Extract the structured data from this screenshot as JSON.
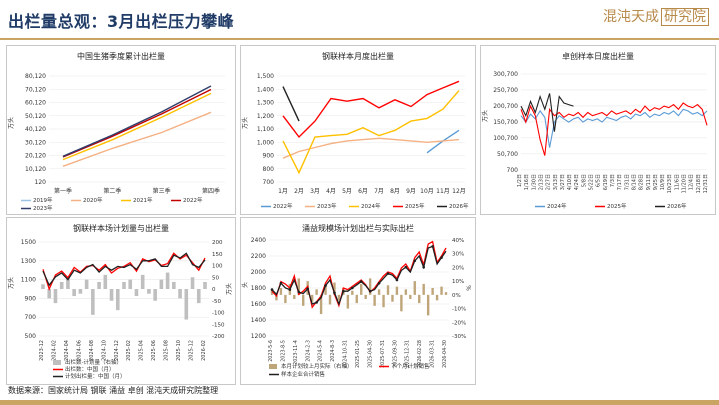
{
  "header": {
    "title": "出栏量总观：3月出栏压力攀峰",
    "brand_left": "混沌天成",
    "brand_right": "研究院"
  },
  "footer": {
    "source": "数据来源：国家统计局  钢联  涌益  卓创  混沌天成研究院整理"
  },
  "colors": {
    "accent": "#c9a463",
    "title": "#1f3b66"
  },
  "chart_data": [
    {
      "id": "c1",
      "type": "line",
      "title": "中国生猪季度累计出栏量",
      "ylabel": "万头",
      "categories": [
        "第一季",
        "第二季",
        "第三季",
        "第四季"
      ],
      "ylim": [
        120,
        80120
      ],
      "yticks": [
        "120",
        "10,120",
        "20,120",
        "30,120",
        "40,120",
        "50,120",
        "60,120",
        "70,120",
        "80,120"
      ],
      "series": [
        {
          "name": "2019年",
          "color": "#9dc3e6",
          "values": [
            null,
            null,
            null,
            null
          ]
        },
        {
          "name": "2020年",
          "color": "#f4b183",
          "values": [
            12000,
            25500,
            37500,
            52700
          ]
        },
        {
          "name": "2021年",
          "color": "#ffc000",
          "values": [
            17000,
            32000,
            49000,
            67000
          ]
        },
        {
          "name": "2022年",
          "color": "#c00000",
          "values": [
            19000,
            34500,
            51500,
            69900
          ]
        },
        {
          "name": "2023年",
          "color": "#2f3d6b",
          "values": [
            19500,
            35500,
            53000,
            72600
          ]
        }
      ]
    },
    {
      "id": "c2",
      "type": "line",
      "title": "钢联样本月度出栏量",
      "ylabel": "万头",
      "categories": [
        "1月",
        "2月",
        "3月",
        "4月",
        "5月",
        "6月",
        "7月",
        "8月",
        "9月",
        "10月",
        "11月",
        "12月"
      ],
      "ylim": [
        700,
        1500
      ],
      "yticks": [
        "700",
        "800",
        "900",
        "1,000",
        "1,100",
        "1,200",
        "1,300",
        "1,400",
        "1,500"
      ],
      "series": [
        {
          "name": "2022年",
          "color": "#5b9bd5",
          "values": [
            null,
            null,
            null,
            null,
            null,
            null,
            null,
            null,
            null,
            920,
            1010,
            1090
          ]
        },
        {
          "name": "2023年",
          "color": "#f4b183",
          "values": [
            880,
            930,
            960,
            990,
            1010,
            1020,
            1030,
            1020,
            1010,
            1000,
            1010,
            1020
          ]
        },
        {
          "name": "2024年",
          "color": "#ffc000",
          "values": [
            1010,
            770,
            1040,
            1050,
            1060,
            1110,
            1050,
            1090,
            1160,
            1180,
            1250,
            1390
          ]
        },
        {
          "name": "2025年",
          "color": "#ff0000",
          "values": [
            1200,
            1040,
            1160,
            1330,
            1310,
            1330,
            1260,
            1320,
            1270,
            1360,
            1410,
            1460
          ]
        },
        {
          "name": "2026年",
          "color": "#222222",
          "values": [
            1420,
            1160,
            null,
            null,
            null,
            null,
            null,
            null,
            null,
            null,
            null,
            null
          ]
        }
      ]
    },
    {
      "id": "c3",
      "type": "line",
      "title": "卓创样本日度出栏量",
      "ylabel": "万头",
      "xticks": [
        "1/2日",
        "1/16日",
        "1/30日",
        "2/13日",
        "2/27日",
        "3/13日",
        "3/27日",
        "4/10日",
        "4/24日",
        "5/8日",
        "5/22日",
        "6/5日",
        "6/19日",
        "7/3日",
        "7/17日",
        "7/31日",
        "8/14日",
        "8/28日",
        "9/11日",
        "9/25日",
        "10/9日",
        "10/23日",
        "11/6日",
        "11/20日",
        "12/4日",
        "12/18日",
        "12/31日"
      ],
      "ylim": [
        0,
        300700
      ],
      "yticks": [
        "700",
        "50,700",
        "100,700",
        "150,700",
        "200,700",
        "250,700",
        "300,700"
      ],
      "series": [
        {
          "name": "2024年",
          "color": "#5b9bd5",
          "values": [
            170000,
            150000,
            175000,
            160000,
            185000,
            165000,
            70000,
            150000,
            170000,
            160000,
            150000,
            160000,
            165000,
            150000,
            160000,
            155000,
            160000,
            150000,
            165000,
            160000,
            155000,
            165000,
            170000,
            160000,
            175000,
            170000,
            180000,
            165000,
            175000,
            170000,
            180000,
            175000,
            185000,
            170000,
            190000,
            185000,
            175000,
            180000,
            170000,
            185000
          ]
        },
        {
          "name": "2025年",
          "color": "#ff0000",
          "values": [
            190000,
            150000,
            200000,
            170000,
            95000,
            45000,
            190000,
            170000,
            180000,
            165000,
            175000,
            170000,
            180000,
            165000,
            180000,
            170000,
            175000,
            180000,
            170000,
            185000,
            175000,
            180000,
            185000,
            175000,
            190000,
            180000,
            200000,
            185000,
            195000,
            190000,
            200000,
            195000,
            205000,
            190000,
            210000,
            200000,
            195000,
            205000,
            190000,
            140000
          ]
        },
        {
          "name": "2026年",
          "color": "#222222",
          "values": [
            200000,
            170000,
            215000,
            180000,
            230000,
            190000,
            240000,
            120000,
            230000,
            210000,
            205000,
            200000,
            null,
            null,
            null,
            null,
            null,
            null,
            null,
            null,
            null,
            null,
            null,
            null,
            null,
            null,
            null,
            null,
            null,
            null,
            null,
            null,
            null,
            null,
            null,
            null,
            null,
            null,
            null,
            null
          ]
        }
      ]
    },
    {
      "id": "c4",
      "type": "bar",
      "title": "钢联样本场计划量与出栏量",
      "ylabel": "万头",
      "y2label": "万头",
      "xticks": [
        "2023-12",
        "2024-02",
        "2024-04",
        "2024-06",
        "2024-08",
        "2024-10",
        "2024-12",
        "2025-02",
        "2025-04",
        "2025-06",
        "2025-08",
        "2025-10",
        "2025-12",
        "2026-02"
      ],
      "ylim": [
        500,
        1500
      ],
      "yticks": [
        "500",
        "700",
        "900",
        "1100",
        "1300",
        "1500"
      ],
      "y2lim": [
        -200,
        200
      ],
      "y2ticks": [
        "-200",
        "-150",
        "-100",
        "-50",
        "0",
        "50",
        "100",
        "150",
        "200"
      ],
      "series": [
        {
          "name": "出栏数-计划量（右轴）",
          "color": "#bfbfbf",
          "type": "bar",
          "values": [
            20,
            -40,
            -60,
            30,
            50,
            -30,
            -20,
            40,
            -110,
            30,
            60,
            -50,
            -90,
            30,
            40,
            -30,
            60,
            -20,
            -50,
            40,
            70,
            30,
            -40,
            -130,
            50,
            -60,
            30
          ]
        },
        {
          "name": "出栏数：中国（月）",
          "color": "#ff0000",
          "type": "line",
          "values": [
            1210,
            1000,
            1150,
            1190,
            1120,
            1230,
            1180,
            1240,
            1250,
            1200,
            1260,
            1170,
            1220,
            1240,
            1280,
            1190,
            1320,
            1290,
            1310,
            1250,
            1270,
            1380,
            1320,
            1360,
            1280,
            1200,
            1330
          ]
        },
        {
          "name": "计划出栏量：中国（月）",
          "color": "#222222",
          "type": "line",
          "values": [
            1190,
            1040,
            1130,
            1170,
            1100,
            1200,
            1170,
            1230,
            1260,
            1180,
            1240,
            1200,
            1240,
            1230,
            1260,
            1210,
            1300,
            1300,
            1320,
            1240,
            1240,
            1360,
            1330,
            1380,
            1260,
            1230,
            1310
          ]
        }
      ]
    },
    {
      "id": "c5",
      "type": "bar",
      "title": "涌益规模场计划出栏与实际出栏",
      "ylabel": "头",
      "y2label": "%",
      "xticks": [
        "2023-5-6",
        "2023-8-5",
        "2023-11-4",
        "2024-2-3",
        "2024-5-4",
        "2024-8-3",
        "2024-10-31",
        "2025-01-25",
        "2025-04-30",
        "2025-07-31",
        "2025-09-30",
        "2025-12-31",
        "2026-02-28",
        "2026-03-31",
        "2026-04-30"
      ],
      "ylim": [
        1200,
        2400
      ],
      "yticks": [
        "1200",
        "1400",
        "1600",
        "1800",
        "2000",
        "2200",
        "2400"
      ],
      "y2lim": [
        -30,
        40
      ],
      "y2ticks": [
        "-30%",
        "-20%",
        "-10%",
        "0%",
        "10%",
        "20%",
        "30%",
        "40%"
      ],
      "series": [
        {
          "name": "本月计划较上月实际（右轴）",
          "color": "#bfa57a",
          "type": "bar",
          "values": [
            3,
            -4,
            5,
            -6,
            8,
            -3,
            12,
            -8,
            10,
            -5,
            4,
            -14,
            6,
            -7,
            9,
            -4,
            5,
            -10,
            3,
            -6,
            8,
            -3,
            12,
            -8,
            4,
            -9,
            7,
            -5,
            6,
            -12,
            4,
            -3,
            10,
            -6,
            8,
            -15,
            5,
            -4,
            6,
            2
          ]
        },
        {
          "name": "下个月计划销售",
          "color": "#ff0000",
          "type": "line",
          "values": [
            1760,
            1700,
            1880,
            1850,
            1800,
            1950,
            1720,
            1760,
            1820,
            1560,
            1630,
            1700,
            1860,
            1950,
            1720,
            1580,
            1800,
            1780,
            1820,
            1860,
            1900,
            1840,
            1750,
            1800,
            1880,
            1950,
            2000,
            1980,
            1920,
            2050,
            2100,
            2010,
            2180,
            2250,
            2090,
            2350,
            2380,
            2120,
            2200,
            2300
          ]
        },
        {
          "name": "样本企业合计销售",
          "color": "#1f1f1f",
          "type": "line",
          "values": [
            1780,
            1720,
            1860,
            1800,
            1780,
            1900,
            1750,
            1730,
            1790,
            1600,
            1620,
            1680,
            1830,
            1900,
            1740,
            1600,
            1760,
            1760,
            1800,
            1840,
            1880,
            1830,
            1760,
            1780,
            1860,
            1920,
            1980,
            1960,
            1900,
            2020,
            2060,
            2000,
            2140,
            2200,
            2060,
            2300,
            2320,
            2100,
            2180,
            2260
          ]
        }
      ]
    }
  ]
}
